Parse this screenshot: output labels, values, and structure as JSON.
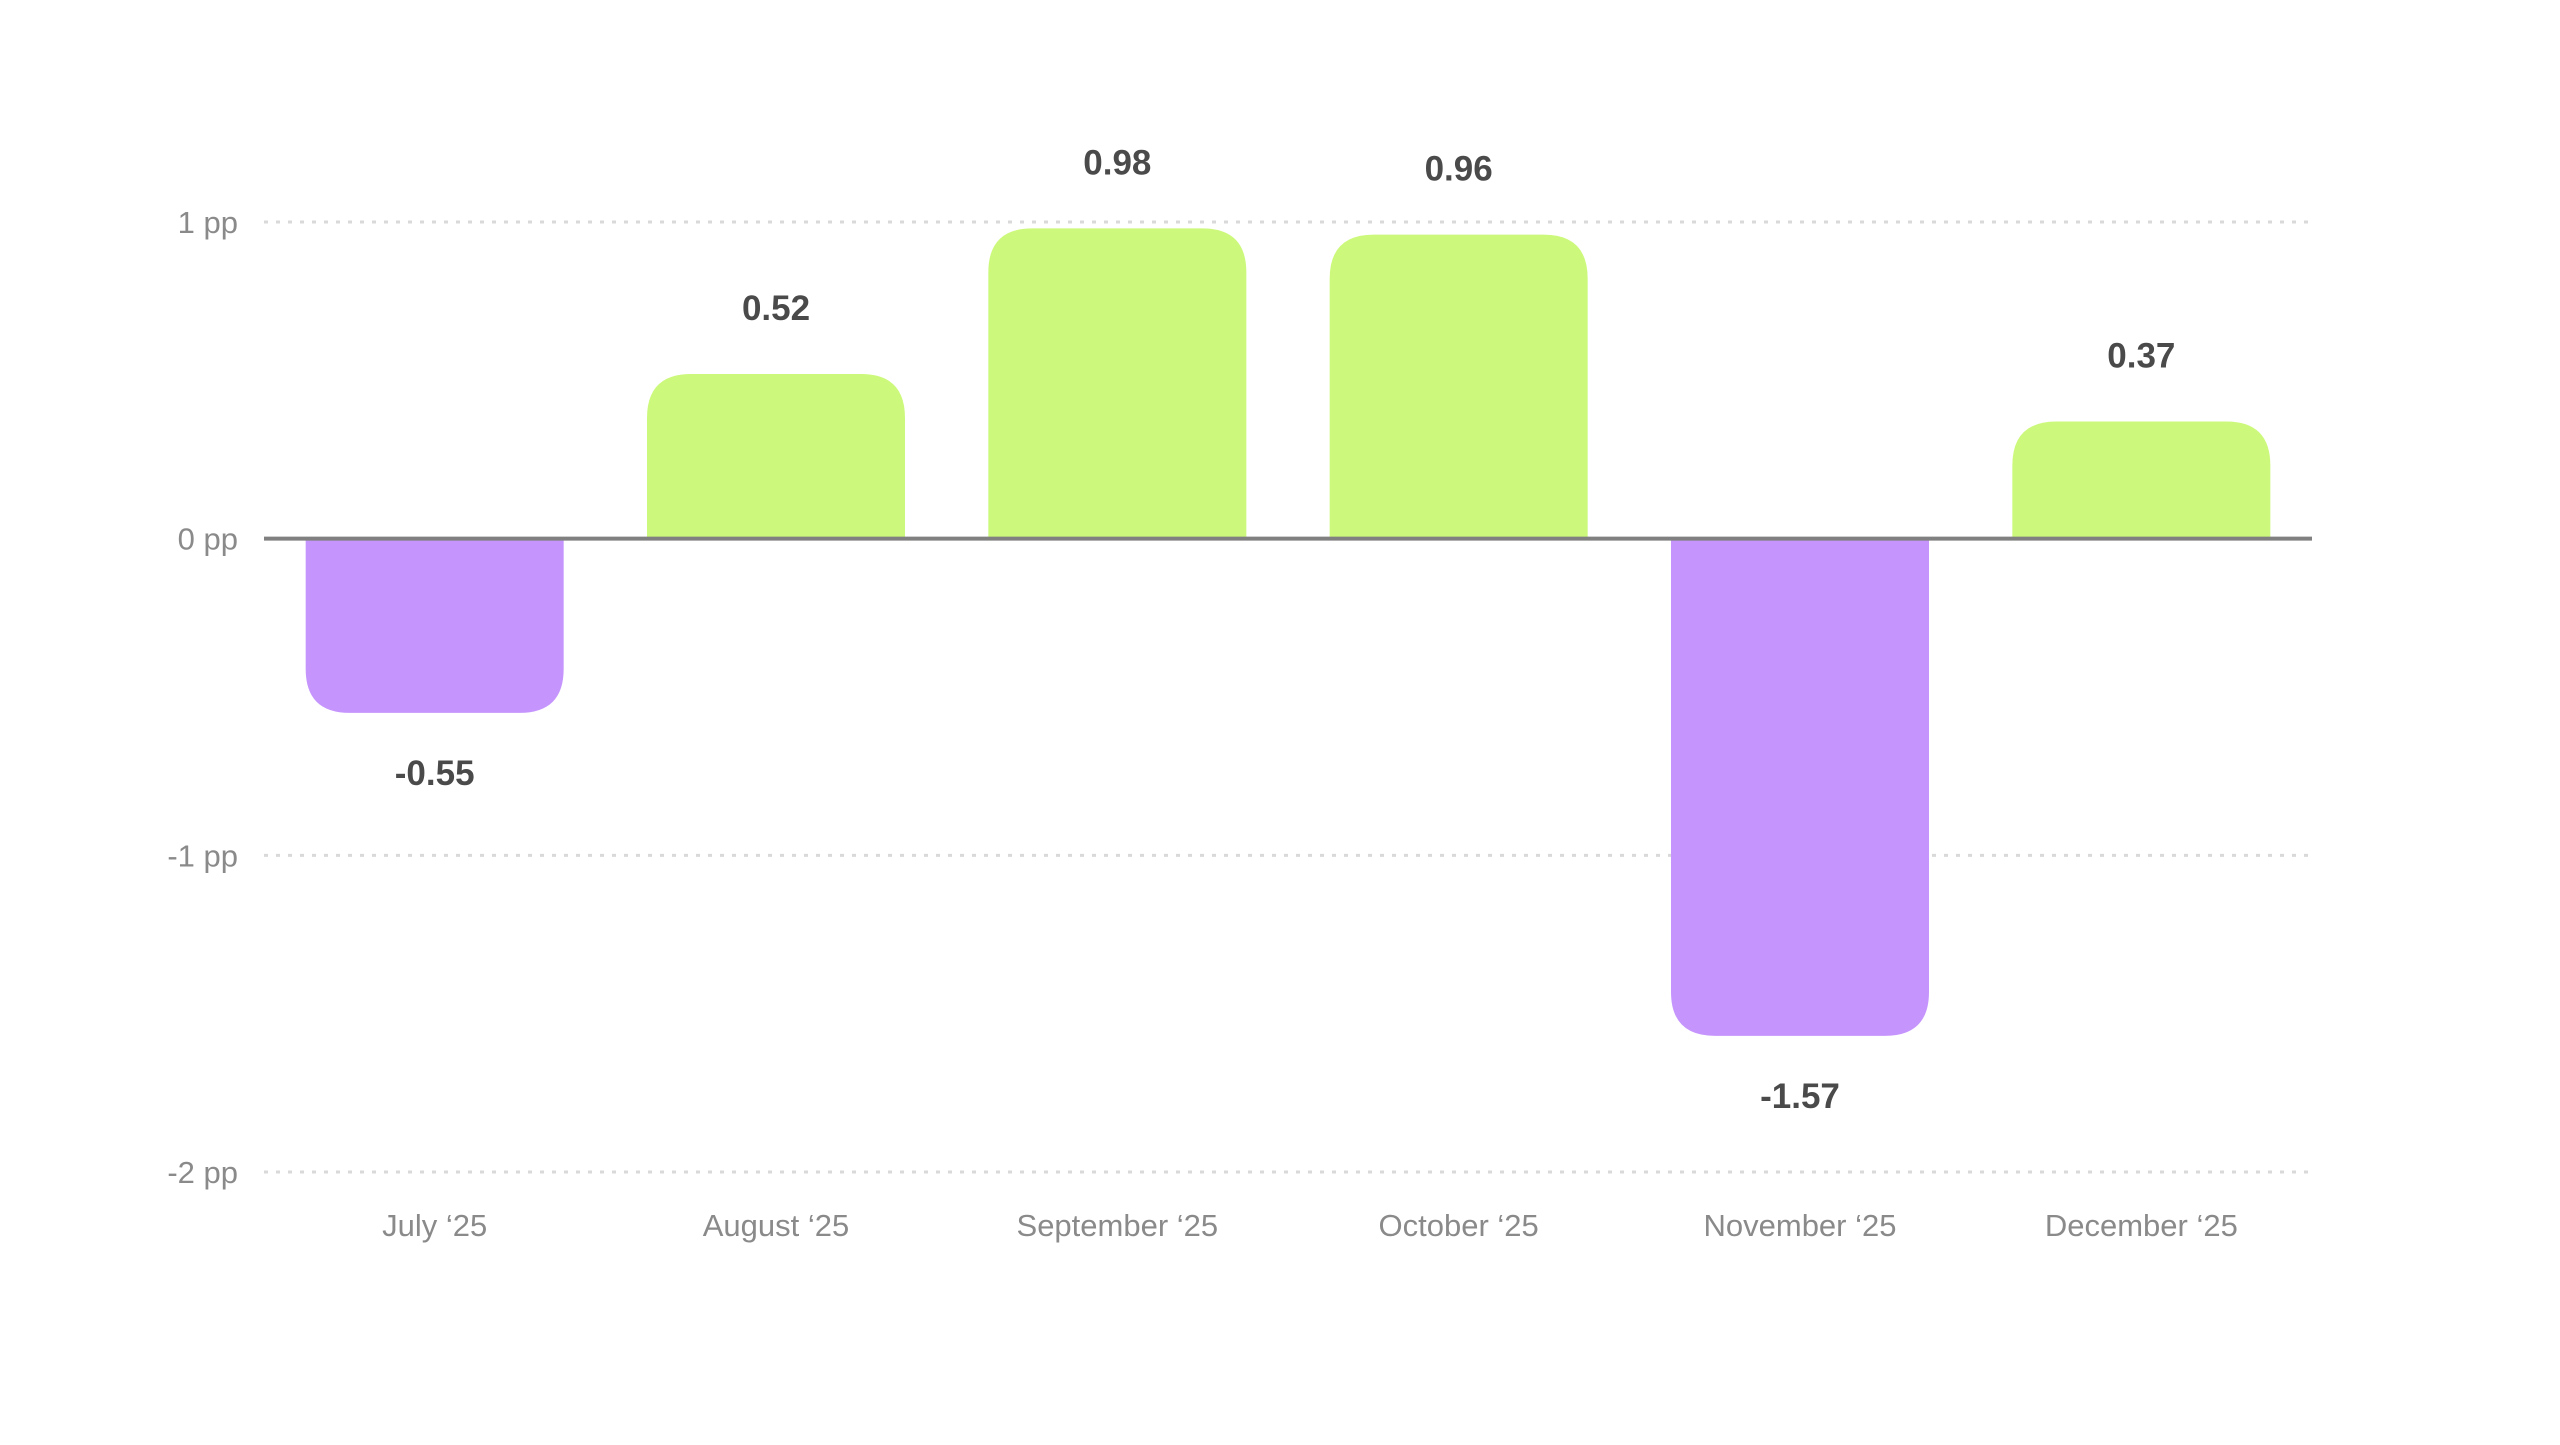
{
  "chart_data": {
    "type": "bar",
    "title": "",
    "xlabel": "",
    "ylabel": "",
    "categories": [
      "July ‘25",
      "August ‘25",
      "September ‘25",
      "October ‘25",
      "November ‘25",
      "December ‘25"
    ],
    "values": [
      -0.55,
      0.52,
      0.98,
      0.96,
      -1.57,
      0.37
    ],
    "data_labels": [
      "-0.55",
      "0.52",
      "0.98",
      "0.96",
      "-1.57",
      "0.37"
    ],
    "ylim": [
      -2,
      1
    ],
    "y_ticks": [
      1,
      0,
      -1,
      -2
    ],
    "y_tick_labels": [
      "1 pp",
      "0 pp",
      "-1 pp",
      "-2 pp"
    ],
    "grid": true,
    "legend": "none",
    "colors": {
      "positive": "#ccf97b",
      "negative": "#c595fd",
      "zero_line": "#808080",
      "grid": "#d9d9d9"
    }
  }
}
